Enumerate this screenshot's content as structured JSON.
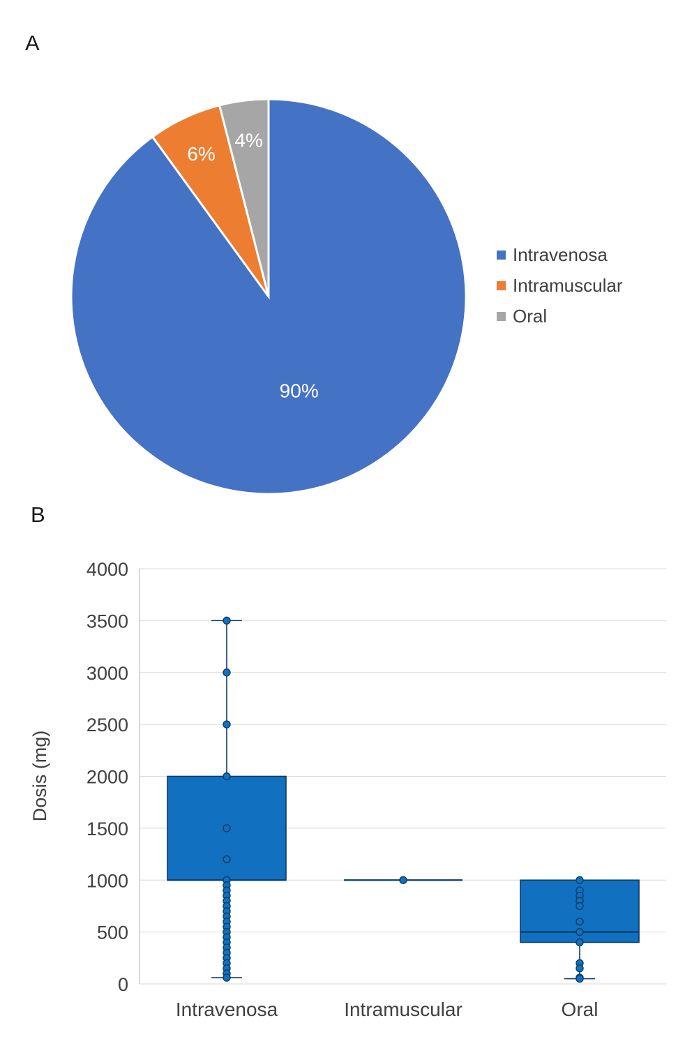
{
  "panels": {
    "a": {
      "label": "A"
    },
    "b": {
      "label": "B"
    }
  },
  "chart_data": [
    {
      "type": "pie",
      "labels": [
        "Intravenosa",
        "Intramuscular",
        "Oral"
      ],
      "values": [
        90,
        6,
        4
      ],
      "data_labels": [
        "90%",
        "6%",
        "4%"
      ],
      "colors": [
        "#4472C4",
        "#ED7D31",
        "#A6A6A6"
      ],
      "legend_position": "right",
      "start_angle_deg": 0,
      "direction": "clockwise"
    },
    {
      "type": "boxplot",
      "ylabel": "Dosis (mg)",
      "ylim": [
        0,
        4000
      ],
      "ytick_step": 500,
      "yticks": [
        0,
        500,
        1000,
        1500,
        2000,
        2500,
        3000,
        3500,
        4000
      ],
      "categories": [
        "Intravenosa",
        "Intramuscular",
        "Oral"
      ],
      "grid": true,
      "box_fill": "#1170C0",
      "box_stroke": "#0B3E66",
      "series": [
        {
          "name": "Intravenosa",
          "q1": 1000,
          "median": 1000,
          "q3": 2000,
          "whisker_low": 60,
          "whisker_high": 3500,
          "points": [
            3500,
            3000,
            2500,
            2000,
            1500,
            1200,
            1000,
            950,
            900,
            850,
            800,
            750,
            700,
            650,
            600,
            550,
            500,
            450,
            400,
            350,
            300,
            250,
            200,
            150,
            100,
            60
          ]
        },
        {
          "name": "Intramuscular",
          "q1": 1000,
          "median": 1000,
          "q3": 1000,
          "whisker_low": 1000,
          "whisker_high": 1000,
          "points": [
            1000
          ]
        },
        {
          "name": "Oral",
          "q1": 400,
          "median": 500,
          "q3": 1000,
          "whisker_low": 50,
          "whisker_high": 1000,
          "points": [
            1000,
            900,
            850,
            800,
            750,
            600,
            500,
            400,
            200,
            150,
            60,
            50
          ]
        }
      ]
    }
  ]
}
